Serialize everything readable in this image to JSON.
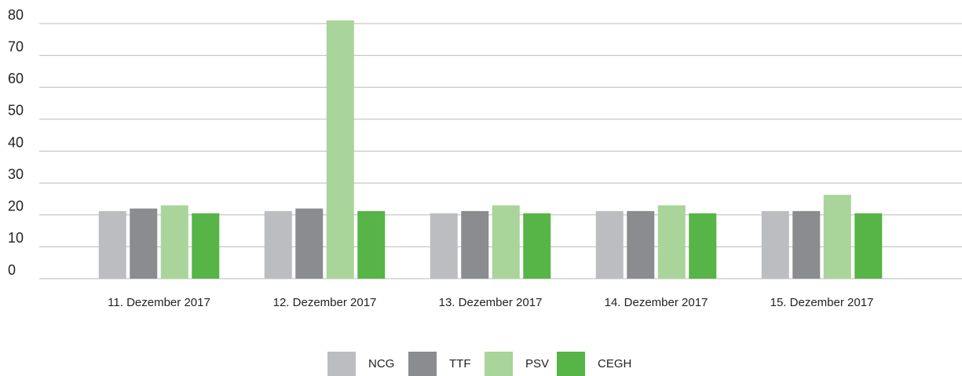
{
  "chart_data": {
    "type": "bar",
    "categories": [
      "11. Dezember 2017",
      "12. Dezember 2017",
      "13. Dezember 2017",
      "14. Dezember 2017",
      "15. Dezember 2017"
    ],
    "series": [
      {
        "name": "NCG",
        "color": "#bcbdc1",
        "values": [
          21.2,
          21.2,
          20.5,
          21.2,
          21.2
        ]
      },
      {
        "name": "TTF",
        "color": "#8b8c90",
        "values": [
          22,
          22,
          21.2,
          21.2,
          21.2
        ]
      },
      {
        "name": "PSV",
        "color": "#a9d49a",
        "values": [
          23,
          81,
          23,
          23,
          26.3
        ]
      },
      {
        "name": "CEGH",
        "color": "#57b446",
        "values": [
          20.5,
          21.2,
          20.5,
          20.5,
          20.5
        ]
      }
    ],
    "ylim": [
      0,
      80
    ],
    "yticks": [
      0,
      10,
      20,
      30,
      40,
      50,
      60,
      70,
      80
    ],
    "grid": true,
    "legend": "bottom"
  }
}
